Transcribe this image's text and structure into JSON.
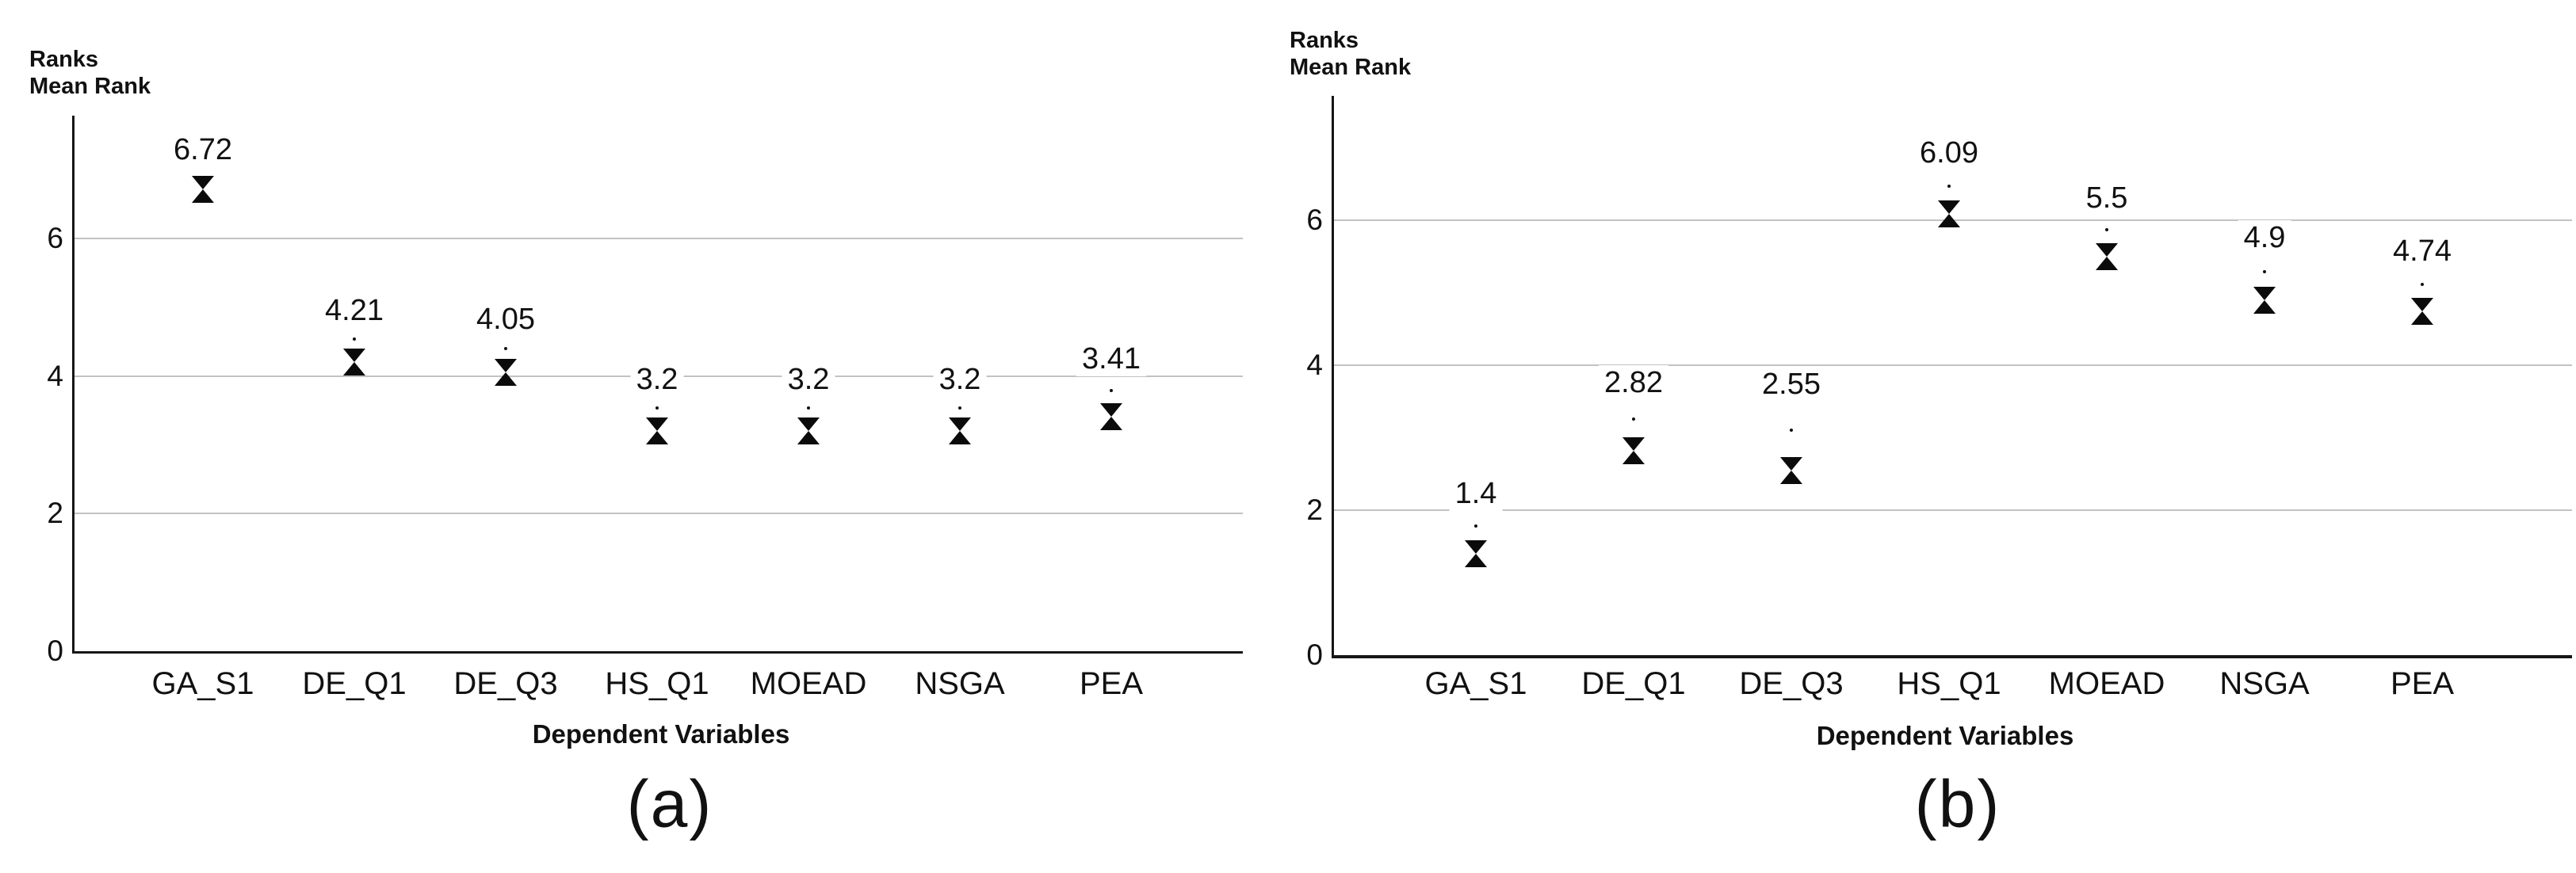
{
  "colors": {
    "grid": "#c2c2c2",
    "axis": "#161616",
    "text": "#111111",
    "marker": "#0b0b0b",
    "background": "#ffffff"
  },
  "chart_data": [
    {
      "type": "scatter",
      "marker_shape": "hourglass",
      "caption": "(a)",
      "title": "Ranks",
      "subtitle": "Mean Rank",
      "xlabel": "Dependent Variables",
      "categories": [
        "GA_S1",
        "DE_Q1",
        "DE_Q3",
        "HS_Q1",
        "MOEAD",
        "NSGA",
        "PEA"
      ],
      "values": [
        6.72,
        4.21,
        4.05,
        3.2,
        3.2,
        3.2,
        3.41
      ],
      "data_labels": [
        "6.72",
        "4.21",
        "4.05",
        "3.2",
        "3.2",
        "3.2",
        "3.41"
      ],
      "yticks": [
        0,
        2,
        4,
        6
      ],
      "ytick_labels": [
        "0",
        "2",
        "4",
        "6"
      ],
      "ylim": [
        0,
        7.8
      ],
      "grid": "horizontal-light",
      "legend": "none",
      "label_y": [
        7.29,
        4.95,
        4.83,
        3.95,
        3.95,
        3.95,
        4.25
      ]
    },
    {
      "type": "scatter",
      "marker_shape": "hourglass",
      "caption": "(b)",
      "title": "Ranks",
      "subtitle": "Mean Rank",
      "xlabel": "Dependent Variables",
      "categories": [
        "GA_S1",
        "DE_Q1",
        "DE_Q3",
        "HS_Q1",
        "MOEAD",
        "NSGA",
        "PEA"
      ],
      "values": [
        1.4,
        2.82,
        2.55,
        6.09,
        5.5,
        4.9,
        4.74
      ],
      "data_labels": [
        "1.4",
        "2.82",
        "2.55",
        "6.09",
        "5.5",
        "4.9",
        "4.74"
      ],
      "yticks": [
        0,
        2,
        4,
        6
      ],
      "ytick_labels": [
        "0",
        "2",
        "4",
        "6"
      ],
      "ylim": [
        0,
        7.8
      ],
      "grid": "horizontal-light",
      "legend": "none",
      "label_y": [
        2.23,
        3.76,
        3.74,
        6.93,
        6.31,
        5.76,
        5.57
      ]
    }
  ]
}
